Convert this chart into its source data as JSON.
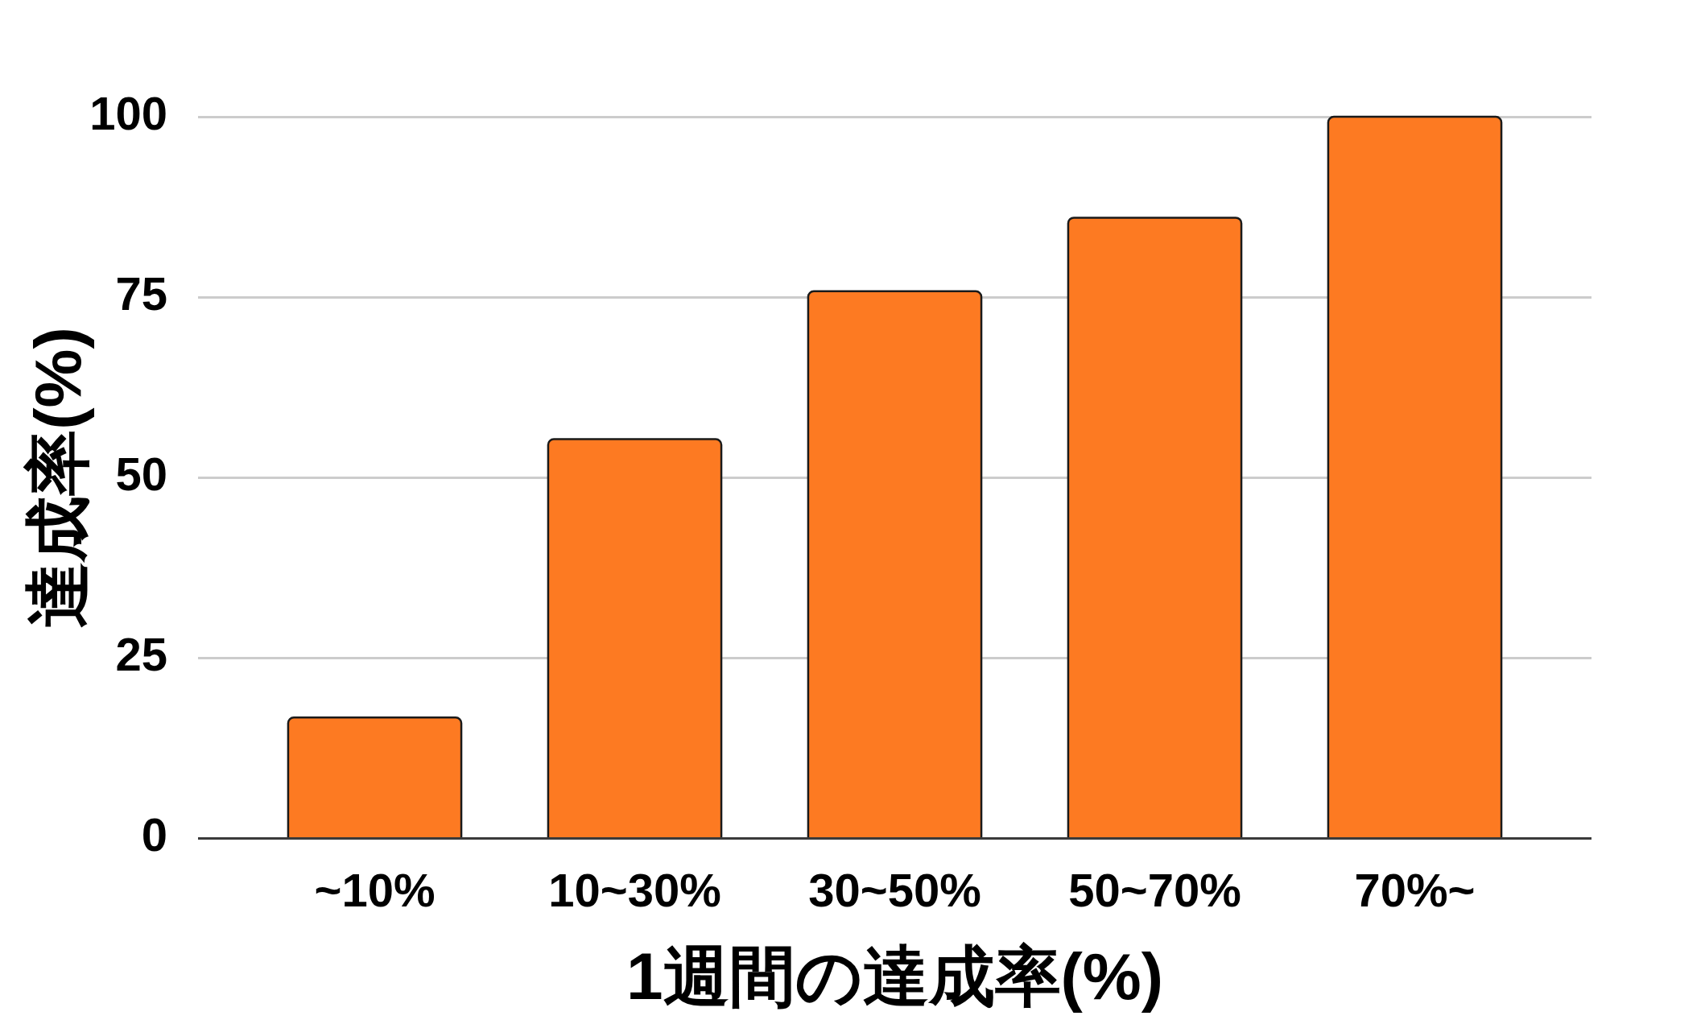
{
  "chart_data": {
    "type": "bar",
    "xlabel": "1週間の達成率(%)",
    "ylabel": "達成率(%)",
    "categories": [
      "~10%",
      "10~30%",
      "30~50%",
      "50~70%",
      "70%~"
    ],
    "values": [
      16.7,
      55.3,
      75.8,
      86.0,
      100
    ],
    "color": "#fd7a22",
    "ylim": [
      0,
      100
    ],
    "yticks": [
      0,
      25,
      50,
      75,
      100
    ],
    "grid": "y",
    "legend": false
  }
}
